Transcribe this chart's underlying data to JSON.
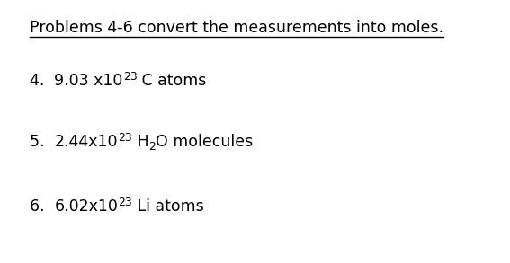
{
  "background_color": "#ffffff",
  "title": "Problems 4-6 convert the measurements into moles.",
  "title_fontsize": 12.5,
  "title_color": "#000000",
  "items": [
    {
      "label": "4.  ",
      "text_parts": [
        {
          "text": "9.03 x10",
          "type": "normal"
        },
        {
          "text": "23",
          "type": "super"
        },
        {
          "text": " C atoms",
          "type": "normal"
        }
      ]
    },
    {
      "label": "5.  ",
      "text_parts": [
        {
          "text": "2.44x10",
          "type": "normal"
        },
        {
          "text": "23",
          "type": "super"
        },
        {
          "text": " H",
          "type": "normal"
        },
        {
          "text": "2",
          "type": "sub"
        },
        {
          "text": "O molecules",
          "type": "normal"
        }
      ]
    },
    {
      "label": "6.  ",
      "text_parts": [
        {
          "text": "6.02x10",
          "type": "normal"
        },
        {
          "text": "23",
          "type": "super"
        },
        {
          "text": " Li atoms",
          "type": "normal"
        }
      ]
    }
  ],
  "item_fontsize": 12.5,
  "font_family": "DejaVu Sans",
  "fig_width": 5.67,
  "fig_height": 2.93,
  "dpi": 100
}
